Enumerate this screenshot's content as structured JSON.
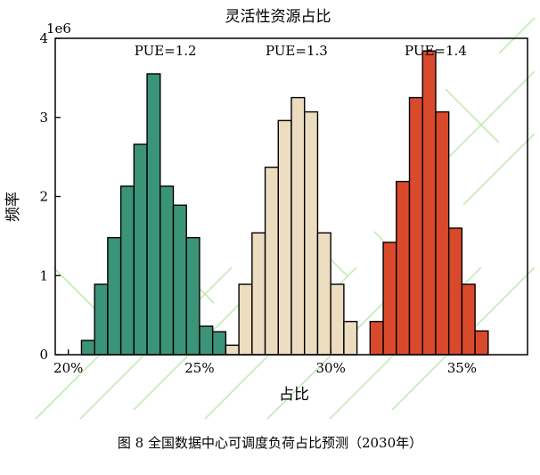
{
  "caption": "图 8   全国数据中心可调度负荷占比预测（2030年）",
  "chart_data": {
    "type": "bar",
    "title": "灵活性资源占比",
    "xlabel": "占比",
    "ylabel": "频率",
    "y_scale_label": "1e6",
    "xlim": [
      19.5,
      37.5
    ],
    "ylim": [
      0,
      4
    ],
    "x_ticks": [
      20,
      25,
      30,
      35
    ],
    "x_tick_labels": [
      "20%",
      "25%",
      "30%",
      "35%"
    ],
    "y_ticks": [
      0,
      1,
      2,
      3,
      4
    ],
    "y_tick_labels": [
      "0",
      "1",
      "2",
      "3",
      "4"
    ],
    "bin_width": 0.5,
    "series": [
      {
        "name": "PUE=1.2",
        "label_x": 23.7,
        "color": "#3c9478",
        "bins_start": 20.5,
        "values": [
          0.18,
          0.89,
          1.48,
          2.13,
          2.66,
          3.55,
          2.13,
          1.89,
          1.48,
          0.36,
          0.29
        ]
      },
      {
        "name": "PUE=1.3",
        "label_x": 28.7,
        "color": "#ecdcc0",
        "bins_start": 26.0,
        "values": [
          0.12,
          0.89,
          1.54,
          2.37,
          2.96,
          3.25,
          3.07,
          1.54,
          0.89,
          0.42
        ]
      },
      {
        "name": "PUE=1.4",
        "label_x": 34.0,
        "color": "#d94a2c",
        "bins_start": 31.5,
        "values": [
          0.42,
          1.42,
          2.19,
          3.25,
          3.84,
          3.07,
          1.6,
          0.89,
          0.3
        ]
      }
    ]
  }
}
